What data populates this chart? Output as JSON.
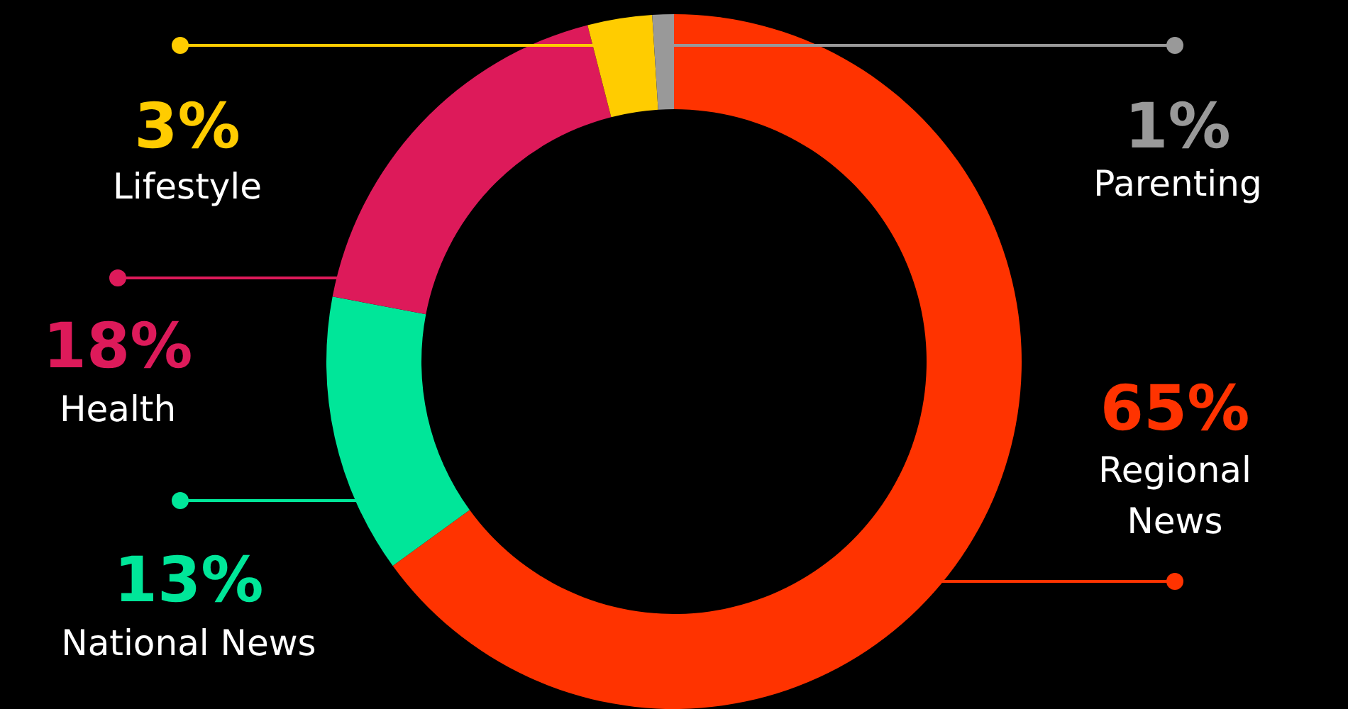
{
  "chart_data": {
    "type": "donut",
    "categories": [
      "Regional News",
      "National News",
      "Health",
      "Lifestyle",
      "Parenting"
    ],
    "values": [
      65,
      13,
      18,
      3,
      1
    ],
    "value_labels": [
      "65%",
      "13%",
      "18%",
      "3%",
      "1%"
    ],
    "colors": [
      "#ff3300",
      "#00e699",
      "#dd1a5a",
      "#ffcc00",
      "#999999"
    ]
  }
}
